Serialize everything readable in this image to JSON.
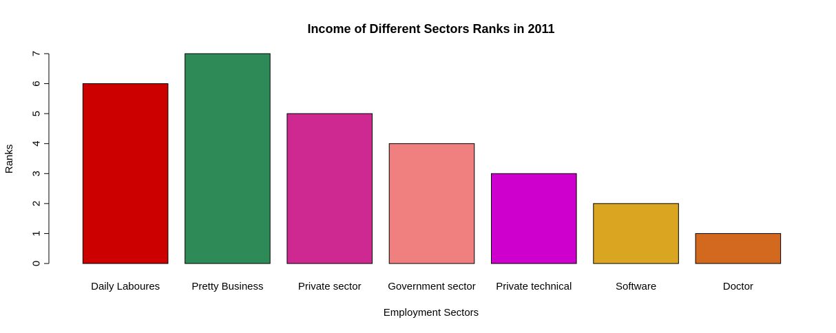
{
  "chart_data": {
    "type": "bar",
    "title": "Income of Different Sectors Ranks in 2011",
    "xlabel": "Employment Sectors",
    "ylabel": "Ranks",
    "categories": [
      "Daily Laboures",
      "Pretty Business",
      "Private sector",
      "Government sector",
      "Private technical",
      "Software",
      "Doctor"
    ],
    "values": [
      6,
      7,
      5,
      4,
      3,
      2,
      1
    ],
    "colors": [
      "#cd0000",
      "#2e8b57",
      "#cd2990",
      "#f08080",
      "#cd00cd",
      "#daa520",
      "#d2691e"
    ],
    "ylim": [
      0,
      7
    ],
    "yticks": [
      0,
      1,
      2,
      3,
      4,
      5,
      6,
      7
    ],
    "grid": false,
    "legend": "none"
  }
}
